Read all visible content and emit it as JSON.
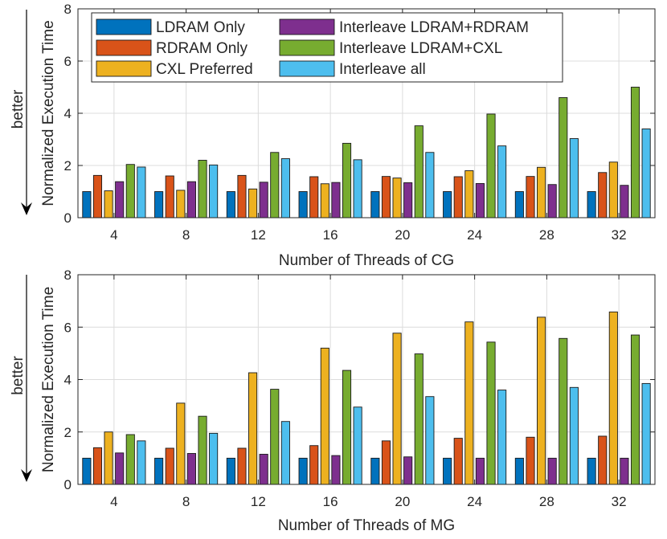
{
  "chart_data": [
    {
      "type": "bar",
      "ylabel": "Normalized Execution Time",
      "xlabel": "Number of Threads of CG",
      "annotation": "better",
      "ylim": [
        0,
        8
      ],
      "yticks": [
        0,
        2,
        4,
        6,
        8
      ],
      "categories": [
        "4",
        "8",
        "12",
        "16",
        "20",
        "24",
        "28",
        "32"
      ],
      "legend_position": "top-left",
      "grid": true,
      "series": [
        {
          "name": "LDRAM Only",
          "values": [
            1,
            1,
            1,
            1,
            1,
            1,
            1,
            1
          ]
        },
        {
          "name": "RDRAM Only",
          "values": [
            1.62,
            1.6,
            1.62,
            1.57,
            1.58,
            1.57,
            1.58,
            1.73
          ]
        },
        {
          "name": "CXL Preferred",
          "values": [
            1.03,
            1.05,
            1.1,
            1.3,
            1.52,
            1.8,
            1.93,
            2.13
          ]
        },
        {
          "name": "Interleave LDRAM+RDRAM",
          "values": [
            1.38,
            1.38,
            1.36,
            1.35,
            1.34,
            1.31,
            1.27,
            1.24
          ]
        },
        {
          "name": "Interleave LDRAM+CXL",
          "values": [
            2.04,
            2.2,
            2.5,
            2.85,
            3.52,
            3.97,
            4.6,
            5.0
          ]
        },
        {
          "name": "Interleave all",
          "values": [
            1.94,
            2.02,
            2.26,
            2.22,
            2.5,
            2.75,
            3.03,
            3.4
          ]
        }
      ]
    },
    {
      "type": "bar",
      "ylabel": "Normalized Execution Time",
      "xlabel": "Number of Threads of MG",
      "annotation": "better",
      "ylim": [
        0,
        8
      ],
      "yticks": [
        0,
        2,
        4,
        6,
        8
      ],
      "categories": [
        "4",
        "8",
        "12",
        "16",
        "20",
        "24",
        "28",
        "32"
      ],
      "grid": true,
      "series": [
        {
          "name": "LDRAM Only",
          "values": [
            1,
            1,
            1,
            1,
            1,
            1,
            1,
            1
          ]
        },
        {
          "name": "RDRAM Only",
          "values": [
            1.4,
            1.38,
            1.38,
            1.48,
            1.66,
            1.76,
            1.8,
            1.84
          ]
        },
        {
          "name": "CXL Preferred",
          "values": [
            2.0,
            3.1,
            4.26,
            5.2,
            5.77,
            6.2,
            6.38,
            6.58
          ]
        },
        {
          "name": "Interleave LDRAM+RDRAM",
          "values": [
            1.2,
            1.18,
            1.15,
            1.1,
            1.05,
            1.0,
            1.0,
            1.0
          ]
        },
        {
          "name": "Interleave LDRAM+CXL",
          "values": [
            1.9,
            2.6,
            3.63,
            4.35,
            4.98,
            5.43,
            5.57,
            5.7
          ]
        },
        {
          "name": "Interleave all",
          "values": [
            1.66,
            1.95,
            2.4,
            2.95,
            3.35,
            3.6,
            3.7,
            3.85
          ]
        }
      ]
    }
  ],
  "colors": [
    "#0072BD",
    "#D95319",
    "#EDB120",
    "#7E2F8E",
    "#77AC30",
    "#4DBEEE"
  ]
}
